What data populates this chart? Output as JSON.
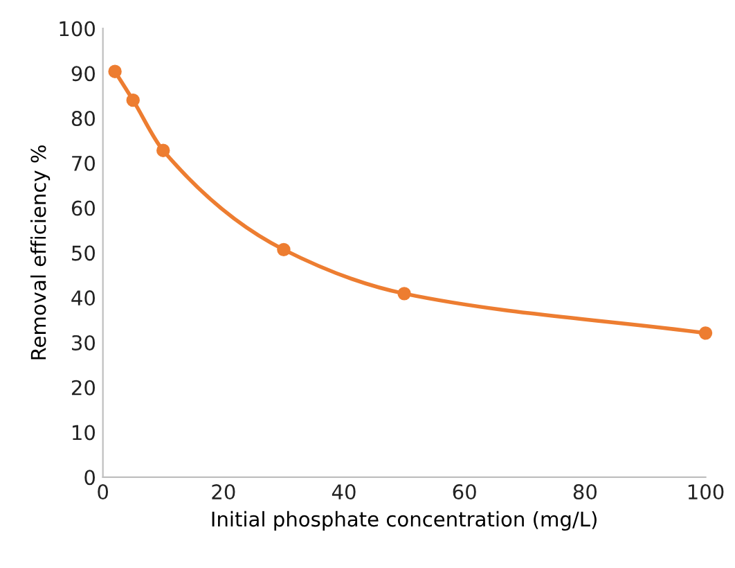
{
  "chart_data": {
    "type": "line",
    "xlabel": "Initial phosphate concentration (mg/L)",
    "ylabel": "Removal efficiency %",
    "x": [
      2,
      5,
      10,
      30,
      50,
      100
    ],
    "series": [
      {
        "color": "#ed7d31",
        "values": [
          90.4,
          84.0,
          72.8,
          50.7,
          40.9,
          32.1
        ]
      }
    ],
    "xlim": [
      0,
      100
    ],
    "xticks": [
      0,
      20,
      40,
      60,
      80,
      100
    ],
    "ylim": [
      0,
      100
    ],
    "yticks": [
      0,
      10,
      20,
      30,
      40,
      50,
      60,
      70,
      80,
      90,
      100
    ],
    "grid": false,
    "legend": false,
    "marker": "circle",
    "line_style": "solid"
  }
}
